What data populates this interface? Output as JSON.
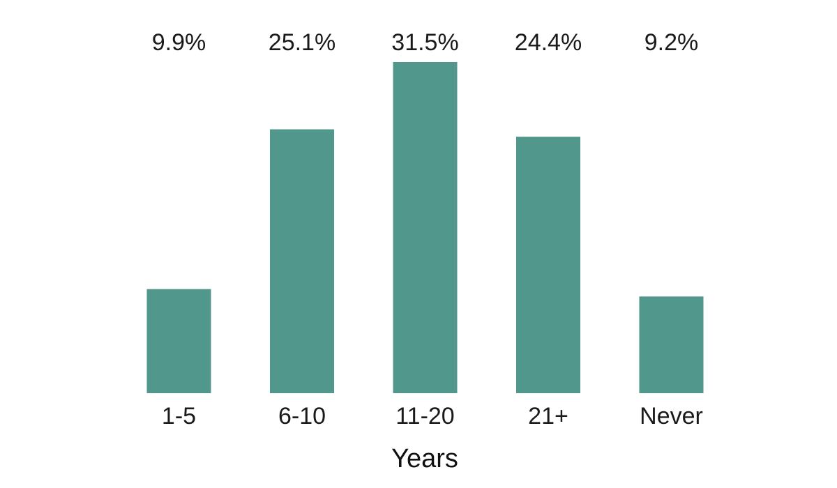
{
  "chart_data": {
    "type": "bar",
    "categories": [
      "1-5",
      "6-10",
      "11-20",
      "21+",
      "Never"
    ],
    "values": [
      9.9,
      25.1,
      31.5,
      24.4,
      9.2
    ],
    "data_labels": [
      "9.9%",
      "25.1%",
      "31.5%",
      "24.4%",
      "9.2%"
    ],
    "title": "",
    "xlabel": "Years",
    "ylabel": "",
    "ylim": [
      0,
      31.5
    ],
    "grid": false,
    "legend": "none",
    "bar_color": "#52978b"
  }
}
